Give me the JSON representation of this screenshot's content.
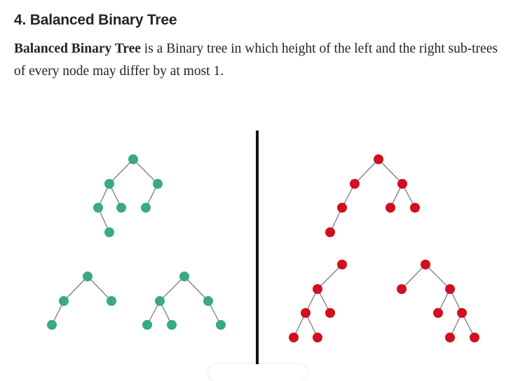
{
  "article": {
    "heading": "4. Balanced Binary Tree",
    "para_bold": "Balanced Binary Tree",
    "para_rest": " is a Binary tree in which height of the left and the right sub-trees of every node may differ by at most 1."
  },
  "figure": {
    "balanced_color": "#3aaa83",
    "unbalanced_color": "#d10f1f",
    "edge_color": "#7a7a7a",
    "divider_color": "#111111",
    "balanced_tree_count": 3,
    "unbalanced_tree_count": 3
  }
}
